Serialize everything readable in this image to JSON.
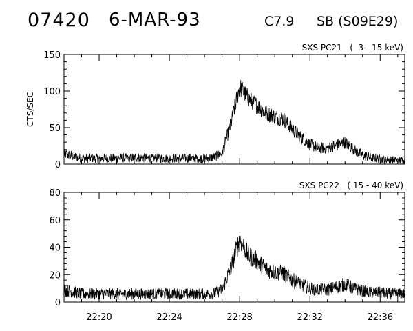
{
  "header": {
    "event_id": "07420",
    "date": "6-MAR-93",
    "flare_class": "C7.9",
    "location": "SB (S09E29)"
  },
  "chart_data": [
    {
      "type": "line",
      "title": "SXS PC21   (  3 - 15 keV)",
      "ylabel": "CTS/SEC",
      "xlabel": "",
      "xlim": [
        "22:18",
        "22:37:24"
      ],
      "ylim": [
        0,
        150
      ],
      "yticks": [
        0,
        50,
        100,
        150
      ],
      "xtick_labels": [
        "",
        "",
        "",
        "",
        "",
        ""
      ],
      "grid": false,
      "series": [
        {
          "x": [
            "22:18",
            "22:19",
            "22:20",
            "22:21",
            "22:22",
            "22:23",
            "22:24",
            "22:25",
            "22:26",
            "22:26:30",
            "22:27",
            "22:27:30",
            "22:28",
            "22:28:30",
            "22:29",
            "22:29:30",
            "22:30",
            "22:30:30",
            "22:31",
            "22:31:30",
            "22:32",
            "22:32:30",
            "22:33",
            "22:33:30",
            "22:34",
            "22:34:30",
            "22:35",
            "22:35:30",
            "22:36",
            "22:36:30",
            "22:37",
            "22:37:24"
          ],
          "values": [
            14,
            8,
            8,
            8,
            9,
            8,
            8,
            8,
            8,
            9,
            15,
            55,
            106,
            90,
            80,
            70,
            65,
            62,
            48,
            37,
            27,
            22,
            22,
            26,
            30,
            20,
            12,
            9,
            7,
            6,
            5,
            5
          ]
        }
      ]
    },
    {
      "type": "line",
      "title": "SXS PC22   ( 15 - 40 keV)",
      "ylabel": "",
      "xlabel": "",
      "xlim": [
        "22:18",
        "22:37:24"
      ],
      "ylim": [
        0,
        80
      ],
      "yticks": [
        0,
        20,
        40,
        60,
        80
      ],
      "xtick_labels": [
        "22:20",
        "22:24",
        "22:28",
        "22:32",
        "22:36"
      ],
      "grid": false,
      "series": [
        {
          "x": [
            "22:18",
            "22:19",
            "22:20",
            "22:21",
            "22:22",
            "22:23",
            "22:24",
            "22:25",
            "22:26",
            "22:26:30",
            "22:27",
            "22:27:30",
            "22:28",
            "22:28:30",
            "22:29",
            "22:29:30",
            "22:30",
            "22:30:30",
            "22:31",
            "22:31:30",
            "22:32",
            "22:32:30",
            "22:33",
            "22:33:30",
            "22:34",
            "22:34:30",
            "22:35",
            "22:35:30",
            "22:36",
            "22:36:30",
            "22:37",
            "22:37:24"
          ],
          "values": [
            9,
            6,
            6,
            6,
            6,
            6,
            6,
            6,
            6,
            6,
            9,
            25,
            46,
            34,
            30,
            24,
            22,
            21,
            16,
            13,
            10,
            9,
            9,
            11,
            13,
            10,
            8,
            7,
            7,
            6,
            6,
            6
          ]
        }
      ]
    }
  ]
}
